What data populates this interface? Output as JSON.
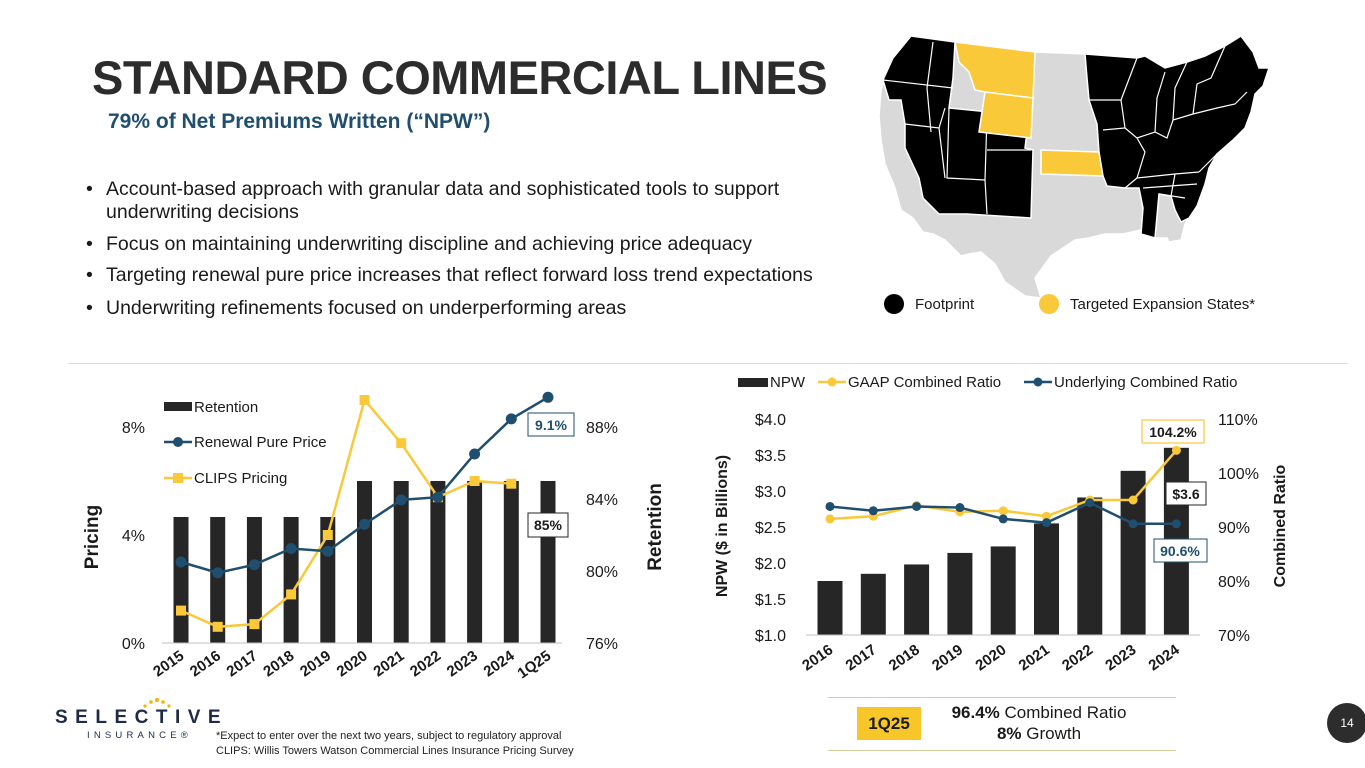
{
  "title": "STANDARD COMMERCIAL LINES",
  "subtitle": "79% of Net Premiums Written (“NPW”)",
  "bullets": [
    "Account-based approach with granular data and sophisticated tools to support underwriting decisions",
    "Focus on maintaining underwriting discipline and achieving price adequacy",
    "Targeting renewal pure price increases that reflect forward loss trend expectations",
    "Underwriting refinements focused on underperforming areas"
  ],
  "map": {
    "legend_footprint": "Footprint",
    "legend_expansion": "Targeted Expansion States*",
    "colors": {
      "footprint": "#000000",
      "expansion": "#f9c93a",
      "other": "#d9d9d9"
    }
  },
  "footnotes": [
    "*Expect to enter over the next two years, subject to regulatory approval",
    "CLIPS: Willis Towers Watson Commercial Lines Insurance Pricing Survey"
  ],
  "logo": {
    "word": "SELECTIVE",
    "sub": "INSURANCE®"
  },
  "page_number": "14",
  "summary": {
    "badge": "1Q25",
    "combined_ratio_value": "96.4%",
    "combined_ratio_label": " Combined Ratio",
    "growth_value": "8%",
    "growth_label": " Growth"
  },
  "chart_data": [
    {
      "type": "bar",
      "categories": [
        "2015",
        "2016",
        "2017",
        "2018",
        "2019",
        "2020",
        "2021",
        "2022",
        "2023",
        "2024",
        "1Q25"
      ],
      "series": [
        {
          "name": "Retention",
          "kind": "bar",
          "axis": "right",
          "values": [
            83,
            83,
            83,
            83,
            83,
            85,
            85,
            85,
            85,
            85,
            85
          ]
        },
        {
          "name": "Renewal Pure Price",
          "kind": "line",
          "axis": "left",
          "values": [
            3.0,
            2.6,
            2.9,
            3.5,
            3.4,
            4.4,
            5.3,
            5.4,
            7.0,
            8.3,
            9.1
          ]
        },
        {
          "name": "CLIPS Pricing",
          "kind": "line",
          "axis": "left",
          "values": [
            1.2,
            0.6,
            0.7,
            1.8,
            4.0,
            9.0,
            7.4,
            5.4,
            6.0,
            5.9,
            null
          ]
        }
      ],
      "ylabel": "Pricing",
      "y2label": "Retention",
      "yticks": [
        "0%",
        "4%",
        "8%"
      ],
      "ylim": [
        0,
        8
      ],
      "y2ticks": [
        "76%",
        "80%",
        "84%",
        "88%"
      ],
      "y2lim": [
        76,
        88
      ],
      "annotations": {
        "pure_price_last": "9.1%",
        "retention_last": "85%"
      },
      "colors": {
        "retention": "#262626",
        "pure_price": "#1f4e6e",
        "clips": "#f9c93a"
      }
    },
    {
      "type": "bar",
      "categories": [
        "2016",
        "2017",
        "2018",
        "2019",
        "2020",
        "2021",
        "2022",
        "2023",
        "2024"
      ],
      "series": [
        {
          "name": "NPW",
          "kind": "bar",
          "axis": "left",
          "values": [
            1.75,
            1.85,
            1.98,
            2.14,
            2.23,
            2.55,
            2.91,
            3.28,
            3.6
          ]
        },
        {
          "name": "GAAP Combined Ratio",
          "kind": "line",
          "axis": "right",
          "values": [
            91.5,
            92.0,
            94.0,
            92.8,
            93.0,
            92.0,
            95.0,
            95.0,
            104.2
          ]
        },
        {
          "name": "Underlying Combined Ratio",
          "kind": "line",
          "axis": "right",
          "values": [
            93.8,
            93.0,
            93.8,
            93.6,
            91.5,
            90.8,
            94.5,
            90.6,
            90.6
          ]
        }
      ],
      "ylabel": "NPW ($ in Billions)",
      "y2label": "Combined Ratio",
      "yticks": [
        "$1.0",
        "$1.5",
        "$2.0",
        "$2.5",
        "$3.0",
        "$3.5",
        "$4.0"
      ],
      "ylim": [
        1.0,
        4.0
      ],
      "y2ticks": [
        "70%",
        "80%",
        "90%",
        "100%",
        "110%"
      ],
      "y2lim": [
        70,
        110
      ],
      "annotations": {
        "gaap_last": "104.2%",
        "npw_last": "$3.6",
        "underlying_last": "90.6%"
      },
      "colors": {
        "npw": "#262626",
        "gaap": "#f9c93a",
        "underlying": "#1f4e6e"
      }
    }
  ]
}
